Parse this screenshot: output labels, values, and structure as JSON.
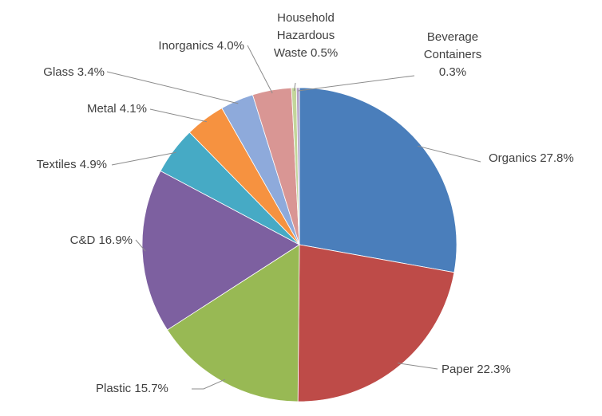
{
  "chart_data": {
    "type": "pie",
    "title": "",
    "start_angle_deg": 0,
    "direction": "clockwise",
    "slices": [
      {
        "name": "Organics",
        "value": 27.8,
        "color": "#4a7ebb",
        "label": [
          "Organics 27.8%"
        ]
      },
      {
        "name": "Paper",
        "value": 22.3,
        "color": "#be4b48",
        "label": [
          "Paper 22.3%"
        ]
      },
      {
        "name": "Plastic",
        "value": 15.7,
        "color": "#98b954",
        "label": [
          "Plastic 15.7%"
        ]
      },
      {
        "name": "C&D",
        "value": 16.9,
        "color": "#7d60a0",
        "label": [
          "C&D 16.9%"
        ]
      },
      {
        "name": "Textiles",
        "value": 4.9,
        "color": "#46aac5",
        "label": [
          "Textiles 4.9%"
        ]
      },
      {
        "name": "Metal",
        "value": 4.1,
        "color": "#f69240",
        "label": [
          "Metal 4.1%"
        ]
      },
      {
        "name": "Glass",
        "value": 3.4,
        "color": "#8eaadb",
        "label": [
          "Glass 3.4%"
        ]
      },
      {
        "name": "Inorganics",
        "value": 4.0,
        "color": "#d99694",
        "label": [
          "Inorganics 4.0%"
        ]
      },
      {
        "name": "Household Hazardous Waste",
        "value": 0.5,
        "color": "#c3d69b",
        "label": [
          "Household",
          "Hazardous",
          "Waste 0.5%"
        ]
      },
      {
        "name": "Beverage Containers",
        "value": 0.3,
        "color": "#b3a2c7",
        "label": [
          "Beverage",
          "Containers",
          "0.3%"
        ]
      }
    ]
  }
}
